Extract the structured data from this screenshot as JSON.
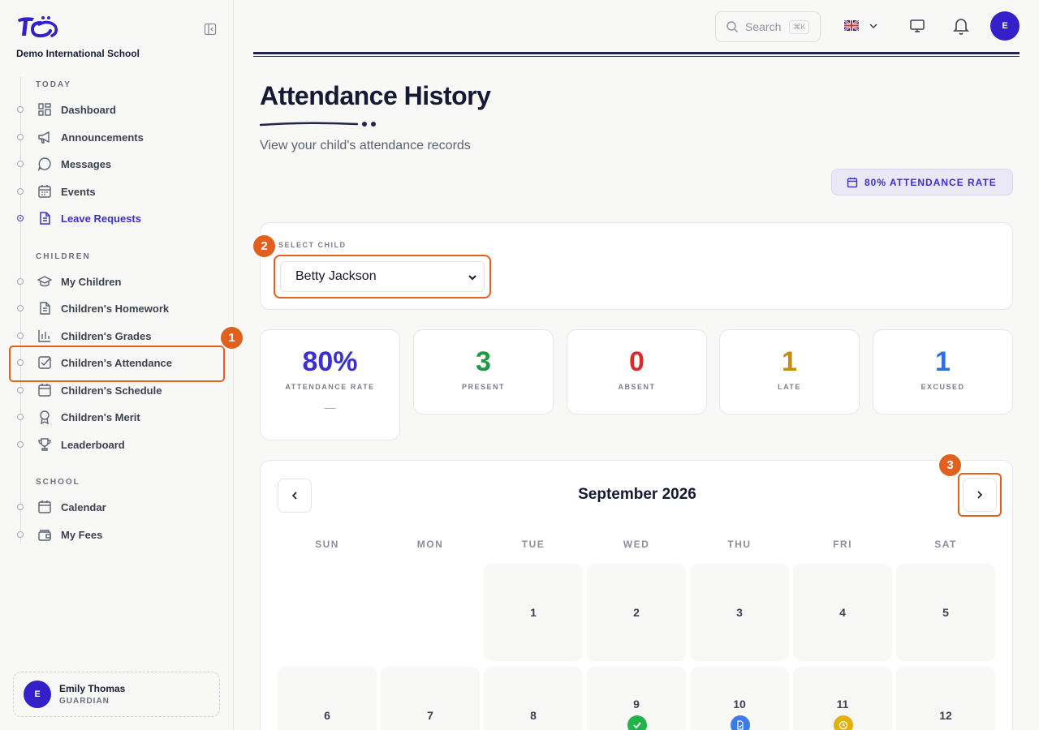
{
  "sidebar": {
    "school_name": "Demo International School",
    "sections": [
      {
        "title": "TODAY",
        "items": [
          "Dashboard",
          "Announcements",
          "Messages",
          "Events",
          "Leave Requests"
        ]
      },
      {
        "title": "CHILDREN",
        "items": [
          "My Children",
          "Children's Homework",
          "Children's Grades",
          "Children's Attendance",
          "Children's Schedule",
          "Children's Merit",
          "Leaderboard"
        ]
      },
      {
        "title": "SCHOOL",
        "items": [
          "Calendar",
          "My Fees"
        ]
      }
    ],
    "active_item": "Leave Requests",
    "user": {
      "initial": "E",
      "name": "Emily Thomas",
      "role": "GUARDIAN"
    }
  },
  "topbar": {
    "search_placeholder": "Search",
    "search_shortcut": "⌘K",
    "avatar_initial": "E"
  },
  "page": {
    "title": "Attendance History",
    "subtitle": "View your child's attendance records",
    "rate_pill": "80% ATTENDANCE RATE"
  },
  "selector": {
    "label": "SELECT CHILD",
    "selected": "Betty Jackson"
  },
  "stats": [
    {
      "value": "80%",
      "label": "ATTENDANCE RATE",
      "color": "#3b2fd0",
      "extra": "—"
    },
    {
      "value": "3",
      "label": "PRESENT",
      "color": "#1e9a45"
    },
    {
      "value": "0",
      "label": "ABSENT",
      "color": "#d92b2b"
    },
    {
      "value": "1",
      "label": "LATE",
      "color": "#c98c05"
    },
    {
      "value": "1",
      "label": "EXCUSED",
      "color": "#2f6de0"
    }
  ],
  "calendar": {
    "month": "September 2026",
    "weekdays": [
      "SUN",
      "MON",
      "TUE",
      "WED",
      "THU",
      "FRI",
      "SAT"
    ],
    "week1": [
      "",
      "",
      "1",
      "2",
      "3",
      "4",
      "5"
    ],
    "week2": [
      "6",
      "7",
      "8",
      "9",
      "10",
      "11",
      "12"
    ],
    "marks": {
      "9": "present",
      "10": "excused",
      "11": "late"
    },
    "mark_colors": {
      "present": "#22b34c",
      "excused": "#3b7be8",
      "late": "#e3b10c"
    }
  },
  "annotations": [
    "1",
    "2",
    "3"
  ]
}
